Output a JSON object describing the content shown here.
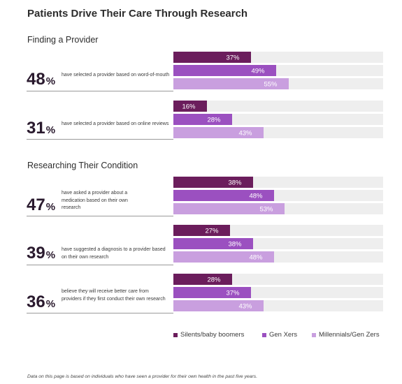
{
  "title": "Patients Drive Their Care Through Research",
  "sections": [
    {
      "label": "Finding a Provider"
    },
    {
      "label": "Researching Their Condition"
    }
  ],
  "stats": [
    {
      "value": "48",
      "suffix": "%",
      "description": "have selected a provider based on word-of-mouth"
    },
    {
      "value": "31",
      "suffix": "%",
      "description": "have selected a provider based on online reviews"
    },
    {
      "value": "47",
      "suffix": "%",
      "description": "have asked a provider about a medication based on their own research"
    },
    {
      "value": "39",
      "suffix": "%",
      "description": "have suggested a diagnosis to a provider based on their own research"
    },
    {
      "value": "36",
      "suffix": "%",
      "description": "believe they will receive better care from providers if they first conduct their own research"
    }
  ],
  "legend": [
    {
      "label": "Silents/baby boomers",
      "color": "#6b1d5c"
    },
    {
      "label": "Gen Xers",
      "color": "#9b50c0"
    },
    {
      "label": "Millennials/Gen Zers",
      "color": "#c99fdf"
    }
  ],
  "footnote": "Data on this page is based on individuals who have seen a provider for their own health in the past five years.",
  "chart_data": {
    "type": "bar",
    "orientation": "horizontal",
    "categories": [
      "have selected a provider based on word-of-mouth",
      "have selected a provider based on online reviews",
      "have asked a provider about a medication based on their own research",
      "have suggested a diagnosis to a provider based on their own research",
      "believe they will receive better care from providers if they first conduct their own research"
    ],
    "series": [
      {
        "name": "Silents/baby boomers",
        "color": "#6b1d5c",
        "values": [
          37,
          16,
          38,
          27,
          28
        ]
      },
      {
        "name": "Gen Xers",
        "color": "#9b50c0",
        "values": [
          49,
          28,
          48,
          38,
          37
        ]
      },
      {
        "name": "Millennials/Gen Zers",
        "color": "#c99fdf",
        "values": [
          55,
          43,
          53,
          48,
          43
        ]
      }
    ],
    "value_suffix": "%",
    "xlim": [
      0,
      100
    ],
    "legend_position": "bottom-right",
    "grid": false
  }
}
